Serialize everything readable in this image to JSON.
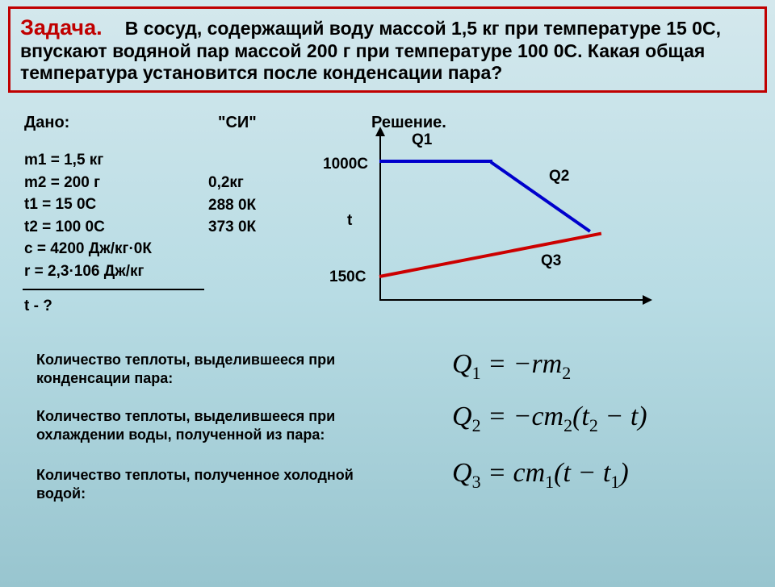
{
  "problem": {
    "title": "Задача.",
    "text": "В сосуд, содержащий воду массой 1,5 кг при температуре 15 0С, впускают водяной пар массой 200 г при температуре 100 0С. Какая общая температура установится после конденсации пара?"
  },
  "headers": {
    "dano": "Дано:",
    "si": "\"СИ\"",
    "resh": "Решение."
  },
  "given": {
    "m1": "m1 = 1,5 кг",
    "m2": "m2 = 200 г",
    "t1": "t1 = 15 0C",
    "t2": "t2 = 100 0C",
    "c": "c = 4200 Дж/кг·0К",
    "r": "r = 2,3·106 Дж/кг"
  },
  "si": {
    "m2": "0,2кг",
    "t1": "288 0К",
    "t2": "373 0К"
  },
  "find": "t - ?",
  "chart": {
    "q1": "Q1",
    "q2": "Q2",
    "q3": "Q3",
    "y_top": "1000С",
    "y_bot": "150С",
    "t": "t",
    "line1_color": "#0000cc",
    "line2_color": "#cc0000",
    "axis_color": "#000000"
  },
  "explanations": {
    "e1": "Количество теплоты, выделившееся при конденсации пара:",
    "e2": "Количество теплоты, выделившееся при охлаждении воды, полученной из пара:",
    "e3": "Количество теплоты, полученное холодной водой:"
  },
  "formulas": {
    "f1_lhs": "Q",
    "f1_sub": "1",
    "f1_rhs_a": " = −rm",
    "f1_rhs_sub": "2",
    "f2_lhs": "Q",
    "f2_sub": "2",
    "f2_rhs_a": " = −cm",
    "f2_rhs_sub": "2",
    "f2_rhs_b": "(t",
    "f2_rhs_sub2": "2",
    "f2_rhs_c": " − t)",
    "f3_lhs": "Q",
    "f3_sub": "3",
    "f3_rhs_a": " = cm",
    "f3_rhs_sub": "1",
    "f3_rhs_b": "(t − t",
    "f3_rhs_sub2": "1",
    "f3_rhs_c": ")"
  }
}
